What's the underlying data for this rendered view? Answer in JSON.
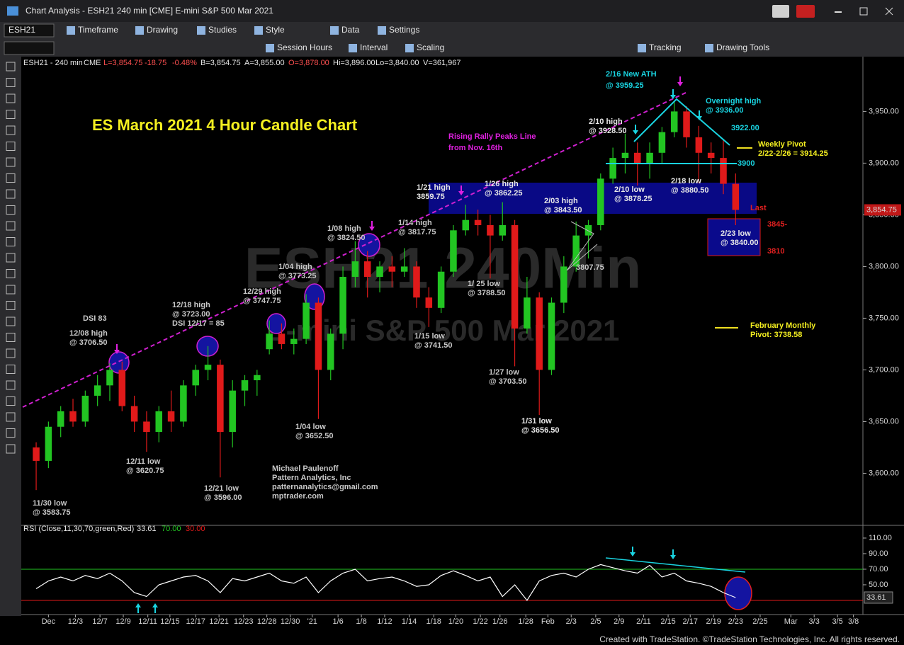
{
  "ui": {
    "window_title": "Chart Analysis - ESH21 240 min [CME] E-mini S&P 500 Mar 2021",
    "symbol": "ESH21",
    "toolbar1": [
      "Timeframe",
      "Drawing",
      "Studies",
      "Style",
      "Data",
      "Settings"
    ],
    "toolbar2": [
      "Session Hours",
      "Interval",
      "Scaling",
      "Tracking",
      "Drawing Tools"
    ],
    "status": [
      "ESH21 - 240 min",
      "CME",
      "L=3,854.75",
      "-18.75",
      "-0.48%",
      "B=3,854.75",
      "A=3,855.00",
      "O=3,878.00",
      "Hi=3,896.00",
      "Lo=3,840.00",
      "V=361,967"
    ],
    "footer": "Created with TradeStation. ©TradeStation Technologies, Inc. All rights reserved."
  },
  "chart_data": {
    "type": "candlestick",
    "title": "ES March 2021 4 Hour Candle Chart",
    "watermark": [
      "ESH21 240Min",
      "E-mini S&P 500 Mar 2021"
    ],
    "x": [
      0,
      1,
      2,
      3,
      4,
      5,
      6,
      7,
      8,
      9,
      10,
      11,
      12,
      13,
      14,
      15,
      16,
      17,
      18,
      19,
      20,
      21,
      22,
      23,
      24,
      25,
      26,
      27,
      28,
      29,
      30,
      31,
      32,
      33,
      34,
      35,
      36,
      37,
      38,
      39,
      40,
      41,
      42,
      43,
      44,
      45,
      46,
      47,
      48,
      49,
      50,
      51,
      52,
      53,
      54,
      55,
      56,
      57
    ],
    "open": [
      3625,
      3612,
      3645,
      3660,
      3650,
      3675,
      3685,
      3700,
      3665,
      3650,
      3640,
      3660,
      3650,
      3685,
      3700,
      3705,
      3640,
      3680,
      3690,
      3720,
      3735,
      3725,
      3730,
      3765,
      3700,
      3735,
      3790,
      3805,
      3790,
      3800,
      3795,
      3800,
      3770,
      3760,
      3795,
      3835,
      3845,
      3840,
      3830,
      3840,
      3740,
      3770,
      3700,
      3765,
      3800,
      3830,
      3840,
      3885,
      3905,
      3910,
      3900,
      3910,
      3930,
      3950,
      3925,
      3910,
      3905,
      3880
    ],
    "high": [
      3630,
      3650,
      3665,
      3672,
      3680,
      3695,
      3706.5,
      3708,
      3675,
      3660,
      3665,
      3680,
      3690,
      3705,
      3723,
      3710,
      3690,
      3695,
      3700,
      3747.75,
      3745,
      3740,
      3773.25,
      3770,
      3740,
      3800,
      3824.5,
      3815,
      3805,
      3810,
      3817.75,
      3805,
      3780,
      3800,
      3840,
      3859.75,
      3855,
      3850,
      3862.25,
      3845,
      3790,
      3775,
      3770,
      3810,
      3843.5,
      3845,
      3890,
      3915,
      3928.5,
      3920,
      3920,
      3935,
      3959.25,
      3955,
      3936,
      3920,
      3922,
      3890
    ],
    "low": [
      3583.75,
      3605,
      3635,
      3645,
      3645,
      3665,
      3670,
      3660,
      3640,
      3620.75,
      3630,
      3640,
      3645,
      3675,
      3690,
      3596,
      3625,
      3665,
      3675,
      3715,
      3720,
      3715,
      3725,
      3652.5,
      3690,
      3720,
      3780,
      3770,
      3775,
      3780,
      3790,
      3760,
      3741.5,
      3755,
      3790,
      3830,
      3830,
      3788.5,
      3825,
      3703.5,
      3735,
      3656.5,
      3695,
      3755,
      3795,
      3807.75,
      3835,
      3880,
      3890,
      3878.25,
      3885,
      3900,
      3925,
      3915,
      3880.5,
      3890,
      3870,
      3840
    ],
    "close": [
      3612,
      3645,
      3660,
      3650,
      3675,
      3685,
      3700,
      3665,
      3650,
      3640,
      3660,
      3650,
      3685,
      3700,
      3705,
      3640,
      3680,
      3690,
      3695,
      3735,
      3725,
      3730,
      3765,
      3700,
      3735,
      3790,
      3805,
      3790,
      3800,
      3795,
      3800,
      3770,
      3760,
      3795,
      3835,
      3845,
      3840,
      3830,
      3840,
      3740,
      3770,
      3700,
      3765,
      3800,
      3830,
      3840,
      3885,
      3905,
      3910,
      3900,
      3910,
      3930,
      3950,
      3925,
      3910,
      3905,
      3880,
      3854.75
    ],
    "up_color": "#22c522",
    "down_color": "#e01a1a",
    "last_price": {
      "value": 3854.75,
      "label": "3,854.75"
    },
    "xlim": [
      -1.1,
      67.2
    ],
    "ylim": [
      3551,
      4003
    ],
    "yticks": [
      {
        "value": 3950,
        "label": "3,950.00"
      },
      {
        "value": 3900,
        "label": "3,900.00"
      },
      {
        "value": 3850,
        "label": "3,850.00"
      },
      {
        "value": 3800,
        "label": "3,800.00"
      },
      {
        "value": 3750,
        "label": "3,750.00"
      },
      {
        "value": 3700,
        "label": "3,700.00"
      },
      {
        "value": 3650,
        "label": "3,650.00"
      },
      {
        "value": 3600,
        "label": "3,600.00"
      }
    ],
    "xticks": [
      {
        "value": 1.0,
        "label": "Dec"
      },
      {
        "value": 3.2,
        "label": "12/3"
      },
      {
        "value": 5.2,
        "label": "12/7"
      },
      {
        "value": 7.1,
        "label": "12/9"
      },
      {
        "value": 9.1,
        "label": "12/11"
      },
      {
        "value": 10.9,
        "label": "12/15"
      },
      {
        "value": 13.0,
        "label": "12/17"
      },
      {
        "value": 14.9,
        "label": "12/21"
      },
      {
        "value": 16.9,
        "label": "12/23"
      },
      {
        "value": 18.8,
        "label": "12/28"
      },
      {
        "value": 20.7,
        "label": "12/30"
      },
      {
        "value": 22.5,
        "label": "'21"
      },
      {
        "value": 24.6,
        "label": "1/6"
      },
      {
        "value": 26.5,
        "label": "1/8"
      },
      {
        "value": 28.4,
        "label": "1/12"
      },
      {
        "value": 30.4,
        "label": "1/14"
      },
      {
        "value": 32.4,
        "label": "1/18"
      },
      {
        "value": 34.2,
        "label": "1/20"
      },
      {
        "value": 36.2,
        "label": "1/22"
      },
      {
        "value": 37.8,
        "label": "1/26"
      },
      {
        "value": 39.9,
        "label": "1/28"
      },
      {
        "value": 41.7,
        "label": "Feb"
      },
      {
        "value": 43.6,
        "label": "2/3"
      },
      {
        "value": 45.6,
        "label": "2/5"
      },
      {
        "value": 47.5,
        "label": "2/9"
      },
      {
        "value": 49.5,
        "label": "2/11"
      },
      {
        "value": 51.5,
        "label": "2/15"
      },
      {
        "value": 53.3,
        "label": "2/17"
      },
      {
        "value": 55.2,
        "label": "2/19"
      },
      {
        "value": 57.0,
        "label": "2/23"
      },
      {
        "value": 59.0,
        "label": "2/25"
      },
      {
        "value": 61.5,
        "label": "Mar"
      },
      {
        "value": 63.4,
        "label": "3/3"
      },
      {
        "value": 65.3,
        "label": "3/5"
      },
      {
        "value": 66.6,
        "label": "3/8"
      }
    ],
    "annotations": [
      [
        "DSI 83"
      ],
      [
        "12/08 high",
        "@ 3706.50"
      ],
      [
        "12/11 low",
        "@ 3620.75"
      ],
      [
        "11/30 low",
        "@ 3583.75"
      ],
      [
        "12/18 high",
        "@ 3723.00",
        "DSI 12/17 = 85"
      ],
      [
        "12/21 low",
        "@ 3596.00"
      ],
      [
        "12/29 high",
        "@ 3747.75"
      ],
      [
        "1/04 high",
        "@ 3773.25"
      ],
      [
        "1/04 low",
        "@ 3652.50"
      ],
      [
        "1/08 high",
        "@ 3824.50"
      ],
      [
        "1/14  high",
        "@ 3817.75"
      ],
      [
        "1/15 low",
        "@ 3741.50"
      ],
      [
        "1/21 high",
        "3859.75"
      ],
      [
        "1/ 25 low",
        "@ 3788.50"
      ],
      [
        "1/26 high",
        "@ 3862.25"
      ],
      [
        "1/27 low",
        "@ 3703.50"
      ],
      [
        "1/31 low",
        "@ 3656.50"
      ],
      [
        "2/03 high",
        "@ 3843.50"
      ],
      [
        "3807.75"
      ],
      [
        "2/10 high",
        "@ 3928.50"
      ],
      [
        "2/10 low",
        "@ 3878.25"
      ],
      [
        "2/16 New ATH",
        "@ 3959.25"
      ],
      [
        "Overnight high",
        "@ 3936.00"
      ],
      [
        "3922.00"
      ],
      [
        "3900"
      ],
      [
        "2/18 low",
        "@ 3880.50"
      ],
      [
        "Weekly Pivot",
        "2/22-2/26 = 3914.25"
      ],
      [
        "2/23 low",
        "@ 3840.00"
      ],
      [
        "Last"
      ],
      [
        "3845-"
      ],
      [
        "3810"
      ],
      [
        "February Monthly",
        "Pivot: 3738.58"
      ],
      [
        "Rising Rally Peaks Line",
        "from Nov. 16th"
      ],
      [
        "Michael Paulenoff",
        "Pattern Analytics, Inc",
        "patternanalytics@gmail.com",
        "mptrader.com"
      ]
    ],
    "rsi": {
      "name": "RSI (Close,11,30,70,green,Red)",
      "color": "#ffffff",
      "values": [
        45,
        55,
        60,
        55,
        62,
        58,
        65,
        55,
        40,
        35,
        50,
        55,
        60,
        62,
        55,
        40,
        58,
        55,
        60,
        65,
        55,
        52,
        60,
        40,
        55,
        65,
        70,
        55,
        58,
        60,
        55,
        48,
        50,
        62,
        68,
        62,
        55,
        60,
        35,
        50,
        30,
        55,
        62,
        65,
        60,
        70,
        76,
        72,
        68,
        65,
        75,
        60,
        65,
        55,
        52,
        48,
        40,
        33.61
      ],
      "levels": [
        {
          "value": 70,
          "label": "70.00",
          "color": "#22c522"
        },
        {
          "value": 30,
          "label": "30.00",
          "color": "#e01a1a"
        }
      ],
      "ylim": [
        14.5,
        123.6
      ],
      "yticks": [
        {
          "value": 110,
          "label": "110.00"
        },
        {
          "value": 90,
          "label": "90.00"
        },
        {
          "value": 70,
          "label": "70.00"
        },
        {
          "value": 50,
          "label": "50.00"
        }
      ]
    }
  }
}
